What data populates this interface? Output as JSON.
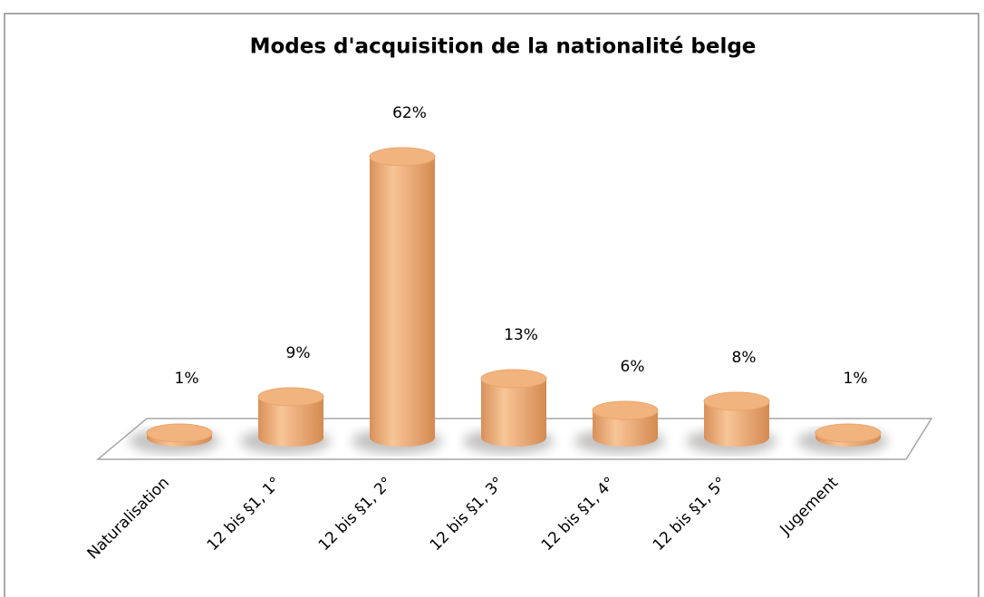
{
  "chart_data": {
    "type": "bar3d",
    "title": "Modes d'acquisition de la nationalité belge",
    "categories": [
      "Naturalisation",
      "12 bis §1, 1°",
      "12 bis §1, 2°",
      "12 bis §1, 3°",
      "12 bis §1, 4°",
      "12 bis §1, 5°",
      "Jugement"
    ],
    "values": [
      1,
      9,
      62,
      13,
      6,
      8,
      1
    ],
    "value_labels": [
      "1%",
      "9%",
      "62%",
      "13%",
      "6%",
      "8%",
      "1%"
    ],
    "color": "#f2b47e"
  }
}
